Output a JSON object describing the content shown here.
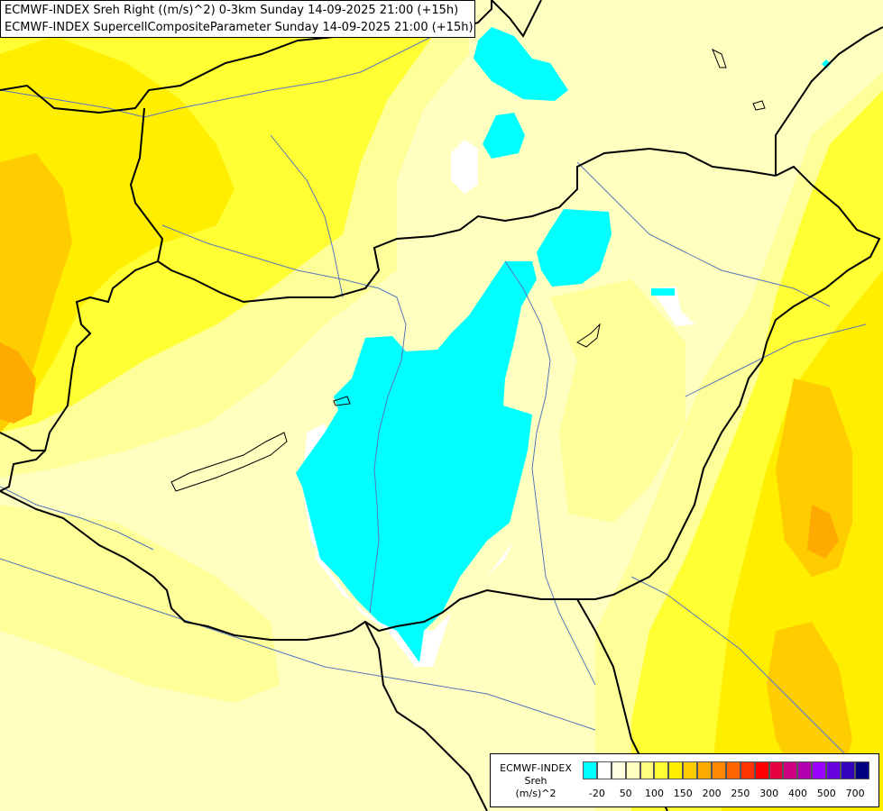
{
  "title": {
    "line1": "ECMWF-INDEX Sreh Right ((m/s)^2) 0-3km Sunday 14-09-2025 21:00 (+15h)",
    "line2": "ECMWF-INDEX SupercellCompositeParameter Sunday 14-09-2025 21:00 (+15h)"
  },
  "legend": {
    "label_model": "ECMWF-INDEX",
    "label_param": "Sreh",
    "label_unit": "(m/s)^2",
    "colors": [
      "#00ffff",
      "#ffffff",
      "#ffffe0",
      "#ffffc0",
      "#ffff80",
      "#ffff33",
      "#ffee00",
      "#ffcc00",
      "#ffaa00",
      "#ff8800",
      "#ff6600",
      "#ff3300",
      "#ff0000",
      "#e60040",
      "#cc0080",
      "#b000b0",
      "#9900ff",
      "#6600dd",
      "#3300bb",
      "#000080"
    ],
    "ticks": [
      "-20",
      "50",
      "100",
      "150",
      "200",
      "250",
      "300",
      "400",
      "500",
      "700"
    ]
  },
  "field_colors": {
    "very_pale": "#ffffc0",
    "pale": "#ffff99",
    "yellow": "#ffff33",
    "gold": "#ffee00",
    "amber": "#ffcc00",
    "orange": "#ffaa00",
    "cyan": "#00ffff",
    "white": "#ffffff"
  }
}
